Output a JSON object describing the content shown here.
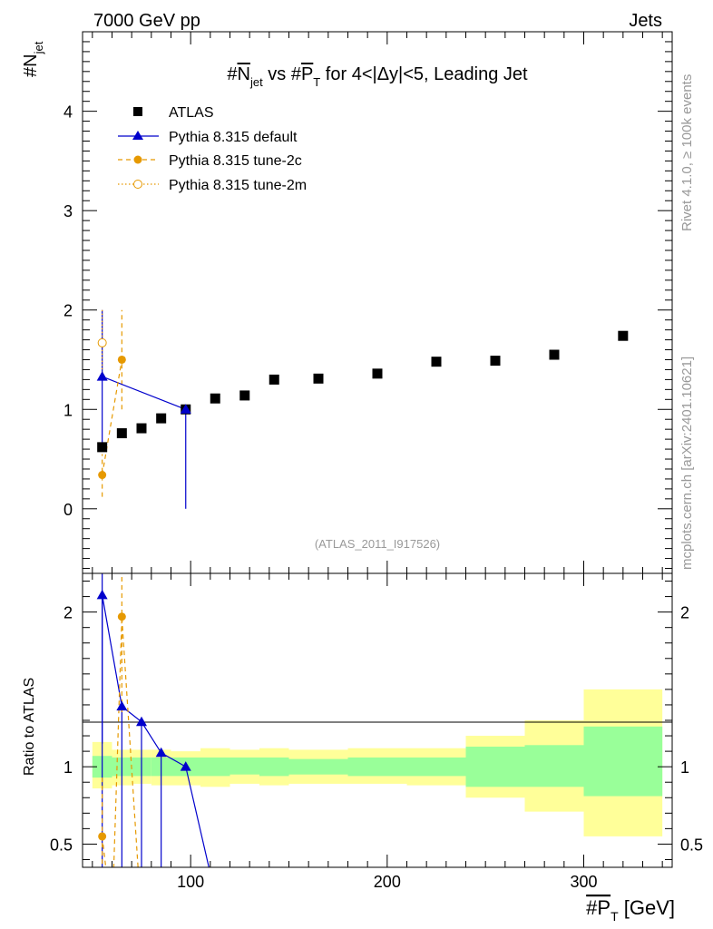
{
  "header": {
    "left": "7000 GeV pp",
    "right": "Jets",
    "side_top": "Rivet 4.1.0, ≥ 100k events",
    "side_bottom": "mcplots.cern.ch [arXiv:2401.10621]",
    "watermark": "(ATLAS_2011_I917526)"
  },
  "chart_data": [
    {
      "type": "scatter",
      "title": "#Njet vs #PT for 4<|Δy|<5, Leading Jet",
      "title_parts": {
        "a": "#",
        "b": "N",
        "c": "jet",
        "d": " vs #",
        "e": "P",
        "f": "T",
        "g": " for 4<|Δy|<5, Leading Jet"
      },
      "ylabel": {
        "base": "#N",
        "sub": "jet"
      },
      "xlabel": {
        "base": "#P",
        "sub": "T",
        "unit": " [GeV]"
      },
      "xlim": [
        45,
        345
      ],
      "ylim": [
        -0.65,
        4.8
      ],
      "yticks": [
        0,
        1,
        2,
        3,
        4
      ],
      "ytick_labels": [
        "0",
        "1",
        "2",
        "3",
        "4"
      ],
      "legend": {
        "position": "top-left",
        "entries": [
          "ATLAS",
          "Pythia 8.315 default",
          "Pythia 8.315 tune-2c",
          "Pythia 8.315 tune-2m"
        ]
      },
      "series": [
        {
          "name": "ATLAS",
          "color": "#000000",
          "marker": "square",
          "x": [
            55,
            65,
            75,
            85,
            97.5,
            112.5,
            127.5,
            142.5,
            165,
            195,
            225,
            255,
            285,
            320
          ],
          "y": [
            0.62,
            0.76,
            0.81,
            0.91,
            1.0,
            1.11,
            1.14,
            1.3,
            1.31,
            1.36,
            1.48,
            1.49,
            1.55,
            1.74
          ]
        },
        {
          "name": "Pythia 8.315 default",
          "color": "#0000cc",
          "marker": "triangle",
          "x": [
            55,
            97.5
          ],
          "y": [
            1.33,
            1.0
          ],
          "err_lo": [
            0.63,
            0.0
          ],
          "err_hi": [
            2.0,
            1.0
          ]
        },
        {
          "name": "Pythia 8.315 tune-2c",
          "color": "#e69900",
          "marker": "circle",
          "x": [
            55,
            65
          ],
          "y": [
            0.34,
            1.5
          ],
          "err_lo": [
            0.12,
            1.0
          ],
          "err_hi": [
            0.55,
            2.0
          ]
        },
        {
          "name": "Pythia 8.315 tune-2m",
          "color": "#e69900",
          "marker": "open-circle",
          "x": [
            55
          ],
          "y": [
            1.67
          ],
          "err_lo": [
            1.33
          ],
          "err_hi": [
            2.0
          ]
        }
      ]
    },
    {
      "type": "line",
      "ylabel": "Ratio to ATLAS",
      "xlim": [
        45,
        345
      ],
      "ylim": [
        0.35,
        2.25
      ],
      "yticks": [
        0.5,
        1,
        2
      ],
      "ytick_labels": [
        "0.5",
        "1",
        "2"
      ],
      "xticks": [
        100,
        200,
        300
      ],
      "xtick_labels": [
        "100",
        "200",
        "300"
      ],
      "bands": {
        "bin_lo": [
          50,
          60,
          70,
          80,
          90,
          105,
          120,
          135,
          150,
          180,
          210,
          240,
          270,
          300
        ],
        "bin_hi": [
          60,
          70,
          80,
          90,
          105,
          120,
          135,
          150,
          180,
          210,
          240,
          270,
          300,
          340
        ],
        "inner_lo": [
          0.93,
          0.94,
          0.94,
          0.94,
          0.94,
          0.94,
          0.95,
          0.94,
          0.95,
          0.94,
          0.94,
          0.87,
          0.87,
          0.81
        ],
        "inner_hi": [
          1.07,
          1.06,
          1.06,
          1.06,
          1.06,
          1.06,
          1.06,
          1.06,
          1.05,
          1.06,
          1.06,
          1.13,
          1.14,
          1.26
        ],
        "outer_lo": [
          0.86,
          0.88,
          0.89,
          0.88,
          0.88,
          0.87,
          0.89,
          0.88,
          0.89,
          0.89,
          0.88,
          0.8,
          0.71,
          0.55
        ],
        "outer_hi": [
          1.16,
          1.11,
          1.11,
          1.11,
          1.1,
          1.12,
          1.11,
          1.12,
          1.11,
          1.12,
          1.12,
          1.2,
          1.3,
          1.5
        ],
        "inner_color": "#99ff99",
        "outer_color": "#ffff99"
      },
      "series": [
        {
          "name": "Pythia 8.315 default",
          "color": "#0000cc",
          "x": [
            55,
            65,
            75,
            85,
            97.5,
            112
          ],
          "y": [
            2.11,
            1.39,
            1.29,
            1.09,
            1.0,
            0.2
          ],
          "markers": [
            true,
            true,
            true,
            true,
            true,
            false
          ]
        },
        {
          "name": "Pythia 8.315 tune-2c",
          "color": "#e69900",
          "x": [
            55,
            60,
            65,
            75
          ],
          "y": [
            0.55,
            0.0,
            1.97,
            0.0
          ],
          "markers": [
            true,
            false,
            true,
            false
          ]
        }
      ]
    }
  ]
}
